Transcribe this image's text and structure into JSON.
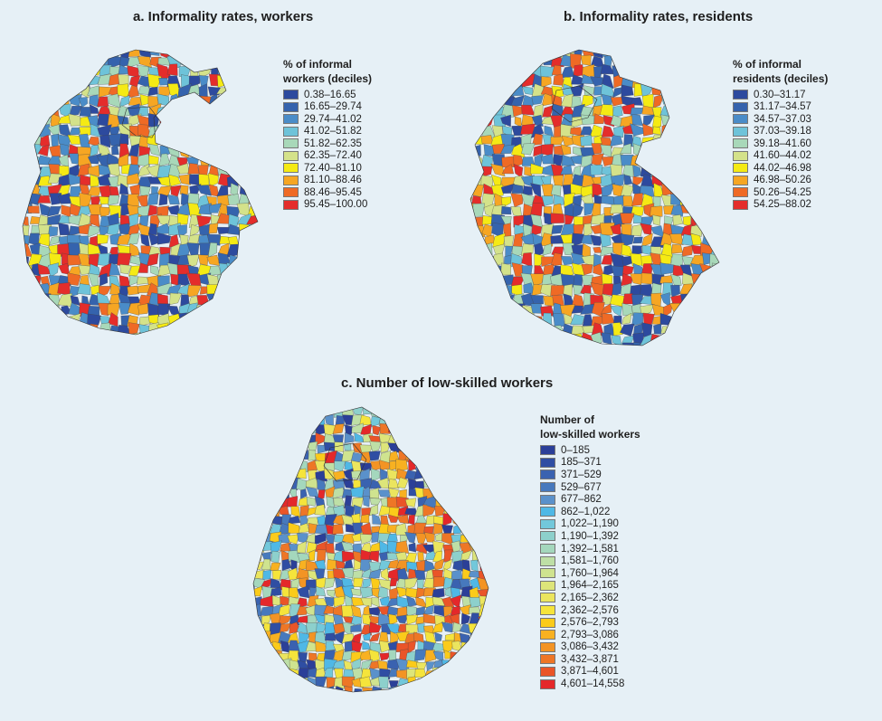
{
  "panels": {
    "a": {
      "title": "a. Informality rates, workers",
      "legend_title_1": "% of informal",
      "legend_title_2": "workers (deciles)",
      "legend": [
        {
          "label": "0.38–16.65",
          "color": "#2d4a9e"
        },
        {
          "label": "16.65–29.74",
          "color": "#3563ad"
        },
        {
          "label": "29.74–41.02",
          "color": "#4a8cc8"
        },
        {
          "label": "41.02–51.82",
          "color": "#6ec3d9"
        },
        {
          "label": "51.82–62.35",
          "color": "#a8d8b9"
        },
        {
          "label": "62.35–72.40",
          "color": "#d4e28a"
        },
        {
          "label": "72.40–81.10",
          "color": "#f5ea14"
        },
        {
          "label": "81.10–88.46",
          "color": "#f6a623"
        },
        {
          "label": "88.46–95.45",
          "color": "#ef6a25"
        },
        {
          "label": "95.45–100.00",
          "color": "#e42d2b"
        }
      ]
    },
    "b": {
      "title": "b. Informality rates, residents",
      "legend_title_1": "% of informal",
      "legend_title_2": "residents (deciles)",
      "legend": [
        {
          "label": "0.30–31.17",
          "color": "#2d4a9e"
        },
        {
          "label": "31.17–34.57",
          "color": "#3563ad"
        },
        {
          "label": "34.57–37.03",
          "color": "#4a8cc8"
        },
        {
          "label": "37.03–39.18",
          "color": "#6ec3d9"
        },
        {
          "label": "39.18–41.60",
          "color": "#a8d8b9"
        },
        {
          "label": "41.60–44.02",
          "color": "#d4e28a"
        },
        {
          "label": "44.02–46.98",
          "color": "#f5ea14"
        },
        {
          "label": "46.98–50.26",
          "color": "#f6a623"
        },
        {
          "label": "50.26–54.25",
          "color": "#ef6a25"
        },
        {
          "label": "54.25–88.02",
          "color": "#e42d2b"
        }
      ]
    },
    "c": {
      "title": "c. Number of low-skilled workers",
      "legend_title_1": "Number of",
      "legend_title_2": "low-skilled workers",
      "legend": [
        {
          "label": "0–185",
          "color": "#2b3f98"
        },
        {
          "label": "185–371",
          "color": "#2f4ea3"
        },
        {
          "label": "371–529",
          "color": "#3a62b0"
        },
        {
          "label": "529–677",
          "color": "#4779bd"
        },
        {
          "label": "677–862",
          "color": "#5a91cb"
        },
        {
          "label": "862–1,022",
          "color": "#4fb8e6"
        },
        {
          "label": "1,022–1,190",
          "color": "#72c8db"
        },
        {
          "label": "1,190–1,392",
          "color": "#8dd0cc"
        },
        {
          "label": "1,392–1,581",
          "color": "#a4d7bd"
        },
        {
          "label": "1,581–1,760",
          "color": "#bedfa6"
        },
        {
          "label": "1,760–1,964",
          "color": "#cfe38f"
        },
        {
          "label": "1,964–2,165",
          "color": "#dde57a"
        },
        {
          "label": "2,165–2,362",
          "color": "#ebe55e"
        },
        {
          "label": "2,362–2,576",
          "color": "#f5e43b"
        },
        {
          "label": "2,576–2,793",
          "color": "#fbcb1a"
        },
        {
          "label": "2,793–3,086",
          "color": "#f8b121"
        },
        {
          "label": "3,086–3,432",
          "color": "#f39424"
        },
        {
          "label": "3,432–3,871",
          "color": "#ee7626"
        },
        {
          "label": "3,871–4,601",
          "color": "#ea5528"
        },
        {
          "label": "4,601–14,558",
          "color": "#e4282a"
        }
      ]
    }
  }
}
